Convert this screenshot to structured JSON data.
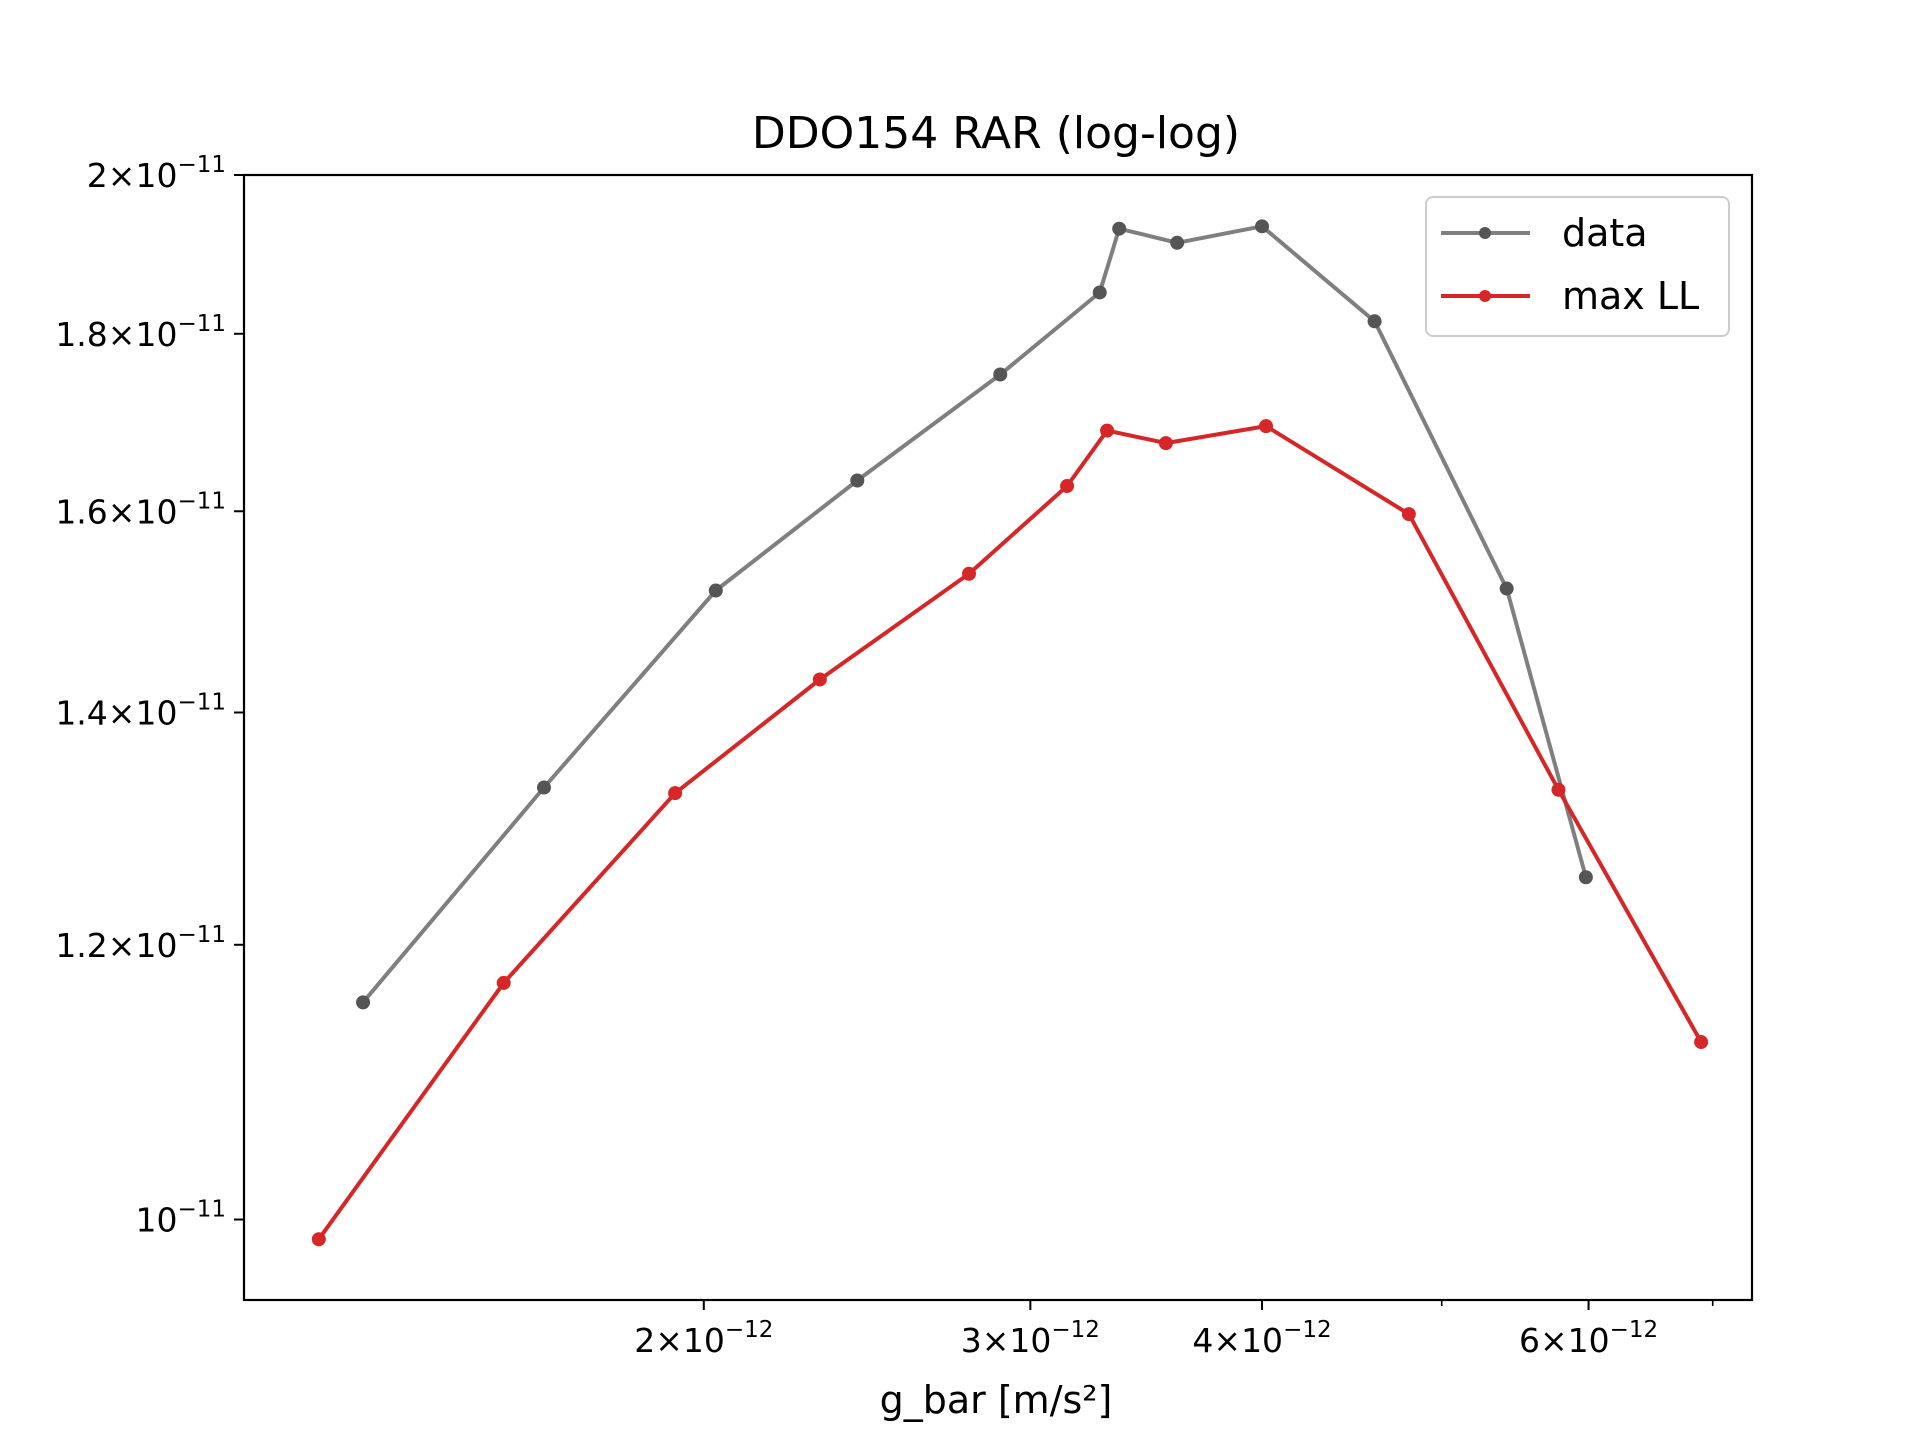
{
  "chart_data": {
    "type": "line",
    "title": "DDO154 RAR (log-log)",
    "xlabel": "g_bar [m/s²]",
    "ylabel": "",
    "xscale": "log",
    "yscale": "log",
    "xlim": [
      1.13e-12,
      7.35e-12
    ],
    "ylim": [
      9.48e-12,
      2e-11
    ],
    "grid": false,
    "legend_position": "top-right",
    "x_ticks": [
      {
        "value": 2e-12,
        "mantissa": "2",
        "exponent": "−12"
      },
      {
        "value": 3e-12,
        "mantissa": "3",
        "exponent": "−12"
      },
      {
        "value": 4e-12,
        "mantissa": "4",
        "exponent": "−12"
      },
      {
        "value": 6e-12,
        "mantissa": "6",
        "exponent": "−12"
      }
    ],
    "x_minor_ticks": [
      5e-12,
      7e-12
    ],
    "y_ticks": [
      {
        "value": 1e-11,
        "mantissa": "",
        "exponent": "−11"
      },
      {
        "value": 1.2e-11,
        "mantissa": "1.2",
        "exponent": "−11"
      },
      {
        "value": 1.4e-11,
        "mantissa": "1.4",
        "exponent": "−11"
      },
      {
        "value": 1.6e-11,
        "mantissa": "1.6",
        "exponent": "−11"
      },
      {
        "value": 1.8e-11,
        "mantissa": "1.8",
        "exponent": "−11"
      },
      {
        "value": 2e-11,
        "mantissa": "2",
        "exponent": "−11"
      }
    ],
    "series": [
      {
        "name": "data",
        "color": "#7f7f7f",
        "marker_color": "#555555",
        "x": [
          1.31e-12,
          1.64e-12,
          2.03e-12,
          2.42e-12,
          2.89e-12,
          3.27e-12,
          3.35e-12,
          3.6e-12,
          4e-12,
          4.6e-12,
          5.42e-12,
          5.98e-12
        ],
        "y": [
          1.155e-11,
          1.332e-11,
          1.518e-11,
          1.633e-11,
          1.752e-11,
          1.85e-11,
          1.93e-11,
          1.912e-11,
          1.933e-11,
          1.815e-11,
          1.52e-11,
          1.255e-11
        ]
      },
      {
        "name": "max LL",
        "color": "#d62728",
        "marker_color": "#d62728",
        "x": [
          1.24e-12,
          1.56e-12,
          1.93e-12,
          2.31e-12,
          2.78e-12,
          3.14e-12,
          3.3e-12,
          3.55e-12,
          4.02e-12,
          4.8e-12,
          5.78e-12,
          6.9e-12
        ],
        "y": [
          9.87e-12,
          1.17e-11,
          1.327e-11,
          1.431e-11,
          1.535e-11,
          1.627e-11,
          1.688e-11,
          1.674e-11,
          1.693e-11,
          1.597e-11,
          1.33e-11,
          1.125e-11
        ]
      }
    ]
  }
}
